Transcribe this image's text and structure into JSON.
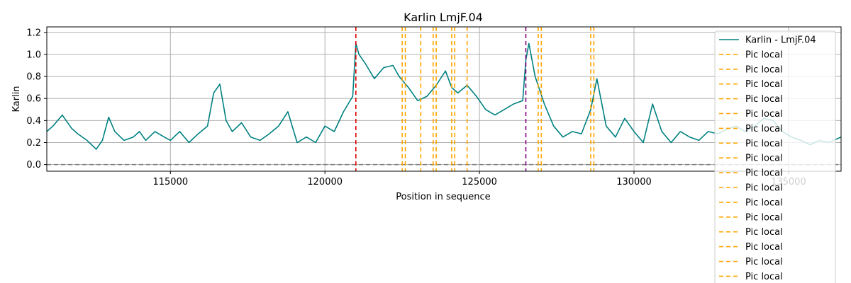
{
  "chart_data": {
    "type": "line",
    "title": "Karlin LmjF.04",
    "xlabel": "Position in sequence",
    "ylabel": "Karlin",
    "xlim": [
      111000,
      136700
    ],
    "ylim": [
      -0.06,
      1.25
    ],
    "x_ticks": [
      115000,
      120000,
      125000,
      130000,
      135000
    ],
    "x_tick_labels": [
      "115000",
      "120000",
      "125000",
      "130000",
      "135000"
    ],
    "y_ticks": [
      0.0,
      0.2,
      0.4,
      0.6,
      0.8,
      1.0,
      1.2
    ],
    "y_tick_labels": [
      "0.0",
      "0.2",
      "0.4",
      "0.6",
      "0.8",
      "1.0",
      "1.2"
    ],
    "grid": true,
    "legend_position": "top-right",
    "series": [
      {
        "name": "Karlin - LmjF.04",
        "color": "#008080",
        "x": [
          111000,
          111200,
          111500,
          111800,
          112000,
          112300,
          112600,
          112800,
          113000,
          113200,
          113500,
          113800,
          114000,
          114200,
          114500,
          114800,
          115000,
          115300,
          115600,
          115900,
          116200,
          116400,
          116600,
          116800,
          117000,
          117300,
          117600,
          117900,
          118200,
          118500,
          118800,
          119100,
          119400,
          119700,
          120000,
          120300,
          120600,
          120900,
          121000,
          121100,
          121300,
          121600,
          121900,
          122200,
          122400,
          122700,
          123000,
          123300,
          123600,
          123900,
          124100,
          124300,
          124600,
          124900,
          125200,
          125500,
          125800,
          126100,
          126400,
          126500,
          126600,
          126800,
          127100,
          127400,
          127700,
          128000,
          128300,
          128600,
          128800,
          129100,
          129400,
          129700,
          130000,
          130300,
          130600,
          130900,
          131200,
          131500,
          131800,
          132100,
          132400,
          132700,
          133000,
          133300,
          133600,
          133900,
          134200,
          134500,
          134800,
          135100,
          135400,
          135700,
          136000,
          136300,
          136700
        ],
        "y": [
          0.3,
          0.35,
          0.45,
          0.33,
          0.28,
          0.22,
          0.14,
          0.22,
          0.43,
          0.3,
          0.22,
          0.25,
          0.3,
          0.22,
          0.3,
          0.25,
          0.22,
          0.3,
          0.2,
          0.28,
          0.35,
          0.65,
          0.73,
          0.4,
          0.3,
          0.38,
          0.25,
          0.22,
          0.28,
          0.35,
          0.48,
          0.2,
          0.25,
          0.2,
          0.35,
          0.3,
          0.48,
          0.62,
          1.1,
          1.0,
          0.92,
          0.78,
          0.88,
          0.9,
          0.8,
          0.7,
          0.58,
          0.62,
          0.72,
          0.85,
          0.7,
          0.65,
          0.72,
          0.62,
          0.5,
          0.45,
          0.5,
          0.55,
          0.58,
          0.95,
          1.1,
          0.8,
          0.55,
          0.35,
          0.25,
          0.3,
          0.28,
          0.5,
          0.78,
          0.35,
          0.25,
          0.42,
          0.3,
          0.2,
          0.55,
          0.3,
          0.2,
          0.3,
          0.25,
          0.22,
          0.3,
          0.28,
          0.32,
          0.35,
          0.3,
          0.35,
          0.42,
          0.4,
          0.3,
          0.25,
          0.22,
          0.18,
          0.22,
          0.2,
          0.25
        ]
      }
    ],
    "hlines": [
      {
        "y": 0.0,
        "color": "#808080",
        "style": "dashed"
      }
    ],
    "vlines": [
      {
        "x": 121000,
        "color": "#e00000",
        "style": "dashed"
      },
      {
        "x": 122500,
        "color": "#ffa500",
        "style": "dashed"
      },
      {
        "x": 122600,
        "color": "#ffa500",
        "style": "dashed"
      },
      {
        "x": 123100,
        "color": "#ffa500",
        "style": "dashed"
      },
      {
        "x": 123500,
        "color": "#ffa500",
        "style": "dashed"
      },
      {
        "x": 123600,
        "color": "#ffa500",
        "style": "dashed"
      },
      {
        "x": 124100,
        "color": "#ffa500",
        "style": "dashed"
      },
      {
        "x": 124200,
        "color": "#ffa500",
        "style": "dashed"
      },
      {
        "x": 124600,
        "color": "#ffa500",
        "style": "dashed"
      },
      {
        "x": 126500,
        "color": "#800080",
        "style": "dashed"
      },
      {
        "x": 126900,
        "color": "#ffa500",
        "style": "dashed"
      },
      {
        "x": 127000,
        "color": "#ffa500",
        "style": "dashed"
      },
      {
        "x": 128600,
        "color": "#ffa500",
        "style": "dashed"
      },
      {
        "x": 128700,
        "color": "#ffa500",
        "style": "dashed"
      }
    ],
    "legend": [
      {
        "label": "Karlin - LmjF.04",
        "color": "#008080",
        "style": "solid"
      },
      {
        "label": "Pic local",
        "color": "#ffa500",
        "style": "dashed"
      },
      {
        "label": "Pic local",
        "color": "#ffa500",
        "style": "dashed"
      },
      {
        "label": "Pic local",
        "color": "#ffa500",
        "style": "dashed"
      },
      {
        "label": "Pic local",
        "color": "#ffa500",
        "style": "dashed"
      },
      {
        "label": "Pic local",
        "color": "#ffa500",
        "style": "dashed"
      },
      {
        "label": "Pic local",
        "color": "#ffa500",
        "style": "dashed"
      },
      {
        "label": "Pic local",
        "color": "#ffa500",
        "style": "dashed"
      },
      {
        "label": "Pic local",
        "color": "#ffa500",
        "style": "dashed"
      },
      {
        "label": "Pic local",
        "color": "#ffa500",
        "style": "dashed"
      },
      {
        "label": "Pic local",
        "color": "#ffa500",
        "style": "dashed"
      },
      {
        "label": "Pic local",
        "color": "#ffa500",
        "style": "dashed"
      },
      {
        "label": "Pic local",
        "color": "#ffa500",
        "style": "dashed"
      },
      {
        "label": "Pic local",
        "color": "#ffa500",
        "style": "dashed"
      },
      {
        "label": "Pic local",
        "color": "#ffa500",
        "style": "dashed"
      },
      {
        "label": "Pic local",
        "color": "#ffa500",
        "style": "dashed"
      },
      {
        "label": "Pic local",
        "color": "#ffa500",
        "style": "dashed"
      }
    ]
  }
}
